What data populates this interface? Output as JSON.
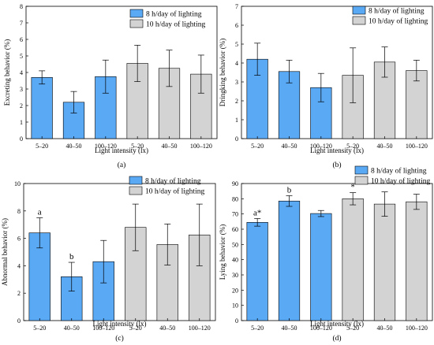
{
  "colors": {
    "blue": "#5aa9f5",
    "gray": "#d3d3d3",
    "frame": "#000000"
  },
  "chart_data": [
    {
      "type": "bar",
      "panel_label": "(a)",
      "xlabel": "Light intensity (lx)",
      "ylabel": "Excreting behavior (%)",
      "ylim": [
        0,
        8
      ],
      "yticks": [
        "0",
        "1",
        "2",
        "3",
        "4",
        "5",
        "6",
        "7",
        "8"
      ],
      "legend_position": "top-right",
      "categories": [
        "5–20",
        "40–50",
        "100–120",
        "5–20",
        "40–50",
        "100–120"
      ],
      "series": [
        {
          "name": "8 h/day of lighting",
          "color": "#5aa9f5",
          "indices": [
            0,
            1,
            2
          ]
        },
        {
          "name": "10 h/day of lighting",
          "color": "#d3d3d3",
          "indices": [
            3,
            4,
            5
          ]
        }
      ],
      "values": [
        3.7,
        2.2,
        3.75,
        4.55,
        4.25,
        3.9
      ],
      "errors": [
        0.4,
        0.65,
        1.0,
        1.1,
        1.1,
        1.15
      ],
      "annotations": [
        "",
        "",
        "",
        "",
        "",
        ""
      ]
    },
    {
      "type": "bar",
      "panel_label": "(b)",
      "xlabel": "Light intensity (lx)",
      "ylabel": "Dringking behavior (%)",
      "ylim": [
        0,
        7
      ],
      "yticks": [
        "0",
        "1",
        "2",
        "3",
        "4",
        "5",
        "6",
        "7"
      ],
      "legend_position": "top-right",
      "categories": [
        "5–20",
        "40–50",
        "100–120",
        "5–20",
        "40–50",
        "100–120"
      ],
      "series": [
        {
          "name": "8 h/day of lighting",
          "color": "#5aa9f5",
          "indices": [
            0,
            1,
            2
          ]
        },
        {
          "name": "10 h/day of lighting",
          "color": "#d3d3d3",
          "indices": [
            3,
            4,
            5
          ]
        }
      ],
      "values": [
        4.2,
        3.55,
        2.7,
        3.35,
        4.05,
        3.6
      ],
      "errors": [
        0.85,
        0.6,
        0.75,
        1.45,
        0.8,
        0.55
      ],
      "annotations": [
        "",
        "",
        "",
        "",
        "",
        ""
      ]
    },
    {
      "type": "bar",
      "panel_label": "(c)",
      "xlabel": "Light intensity (lx)",
      "ylabel": "Abnormal behavior (%)",
      "ylim": [
        0,
        10
      ],
      "yticks": [
        "0",
        "2",
        "4",
        "6",
        "8",
        "10"
      ],
      "legend_position": "top-right",
      "categories": [
        "5–20",
        "40–50",
        "100–120",
        "5–20",
        "40–50",
        "100–120"
      ],
      "series": [
        {
          "name": "8 h/day of lighting",
          "color": "#5aa9f5",
          "indices": [
            0,
            1,
            2
          ]
        },
        {
          "name": "10 h/day of lighting",
          "color": "#d3d3d3",
          "indices": [
            3,
            4,
            5
          ]
        }
      ],
      "values": [
        6.4,
        3.2,
        4.3,
        6.8,
        5.55,
        6.25
      ],
      "errors": [
        1.1,
        1.05,
        1.55,
        1.7,
        1.5,
        2.25
      ],
      "annotations": [
        "a",
        "b",
        "",
        "",
        "",
        ""
      ]
    },
    {
      "type": "bar",
      "panel_label": "(d)",
      "xlabel": "Light intensity (lx)",
      "ylabel": "Lying behavior (%)",
      "ylim": [
        0,
        90
      ],
      "yticks": [
        "0",
        "10",
        "20",
        "30",
        "40",
        "50",
        "60",
        "70",
        "80",
        "90"
      ],
      "legend_position": "top-right",
      "categories": [
        "5–20",
        "40–50",
        "100–120",
        "5–20",
        "40–50",
        "100–120"
      ],
      "series": [
        {
          "name": "8 h/day of lighting",
          "color": "#5aa9f5",
          "indices": [
            0,
            1,
            2
          ]
        },
        {
          "name": "10 h/day of lighting",
          "color": "#d3d3d3",
          "indices": [
            3,
            4,
            5
          ]
        }
      ],
      "values": [
        64.5,
        78.5,
        70.3,
        80.0,
        76.5,
        78.0
      ],
      "errors": [
        2.5,
        3.5,
        2.0,
        4.0,
        8.0,
        5.0
      ],
      "annotations": [
        "a*",
        "b",
        "",
        "*",
        "",
        ""
      ]
    }
  ]
}
